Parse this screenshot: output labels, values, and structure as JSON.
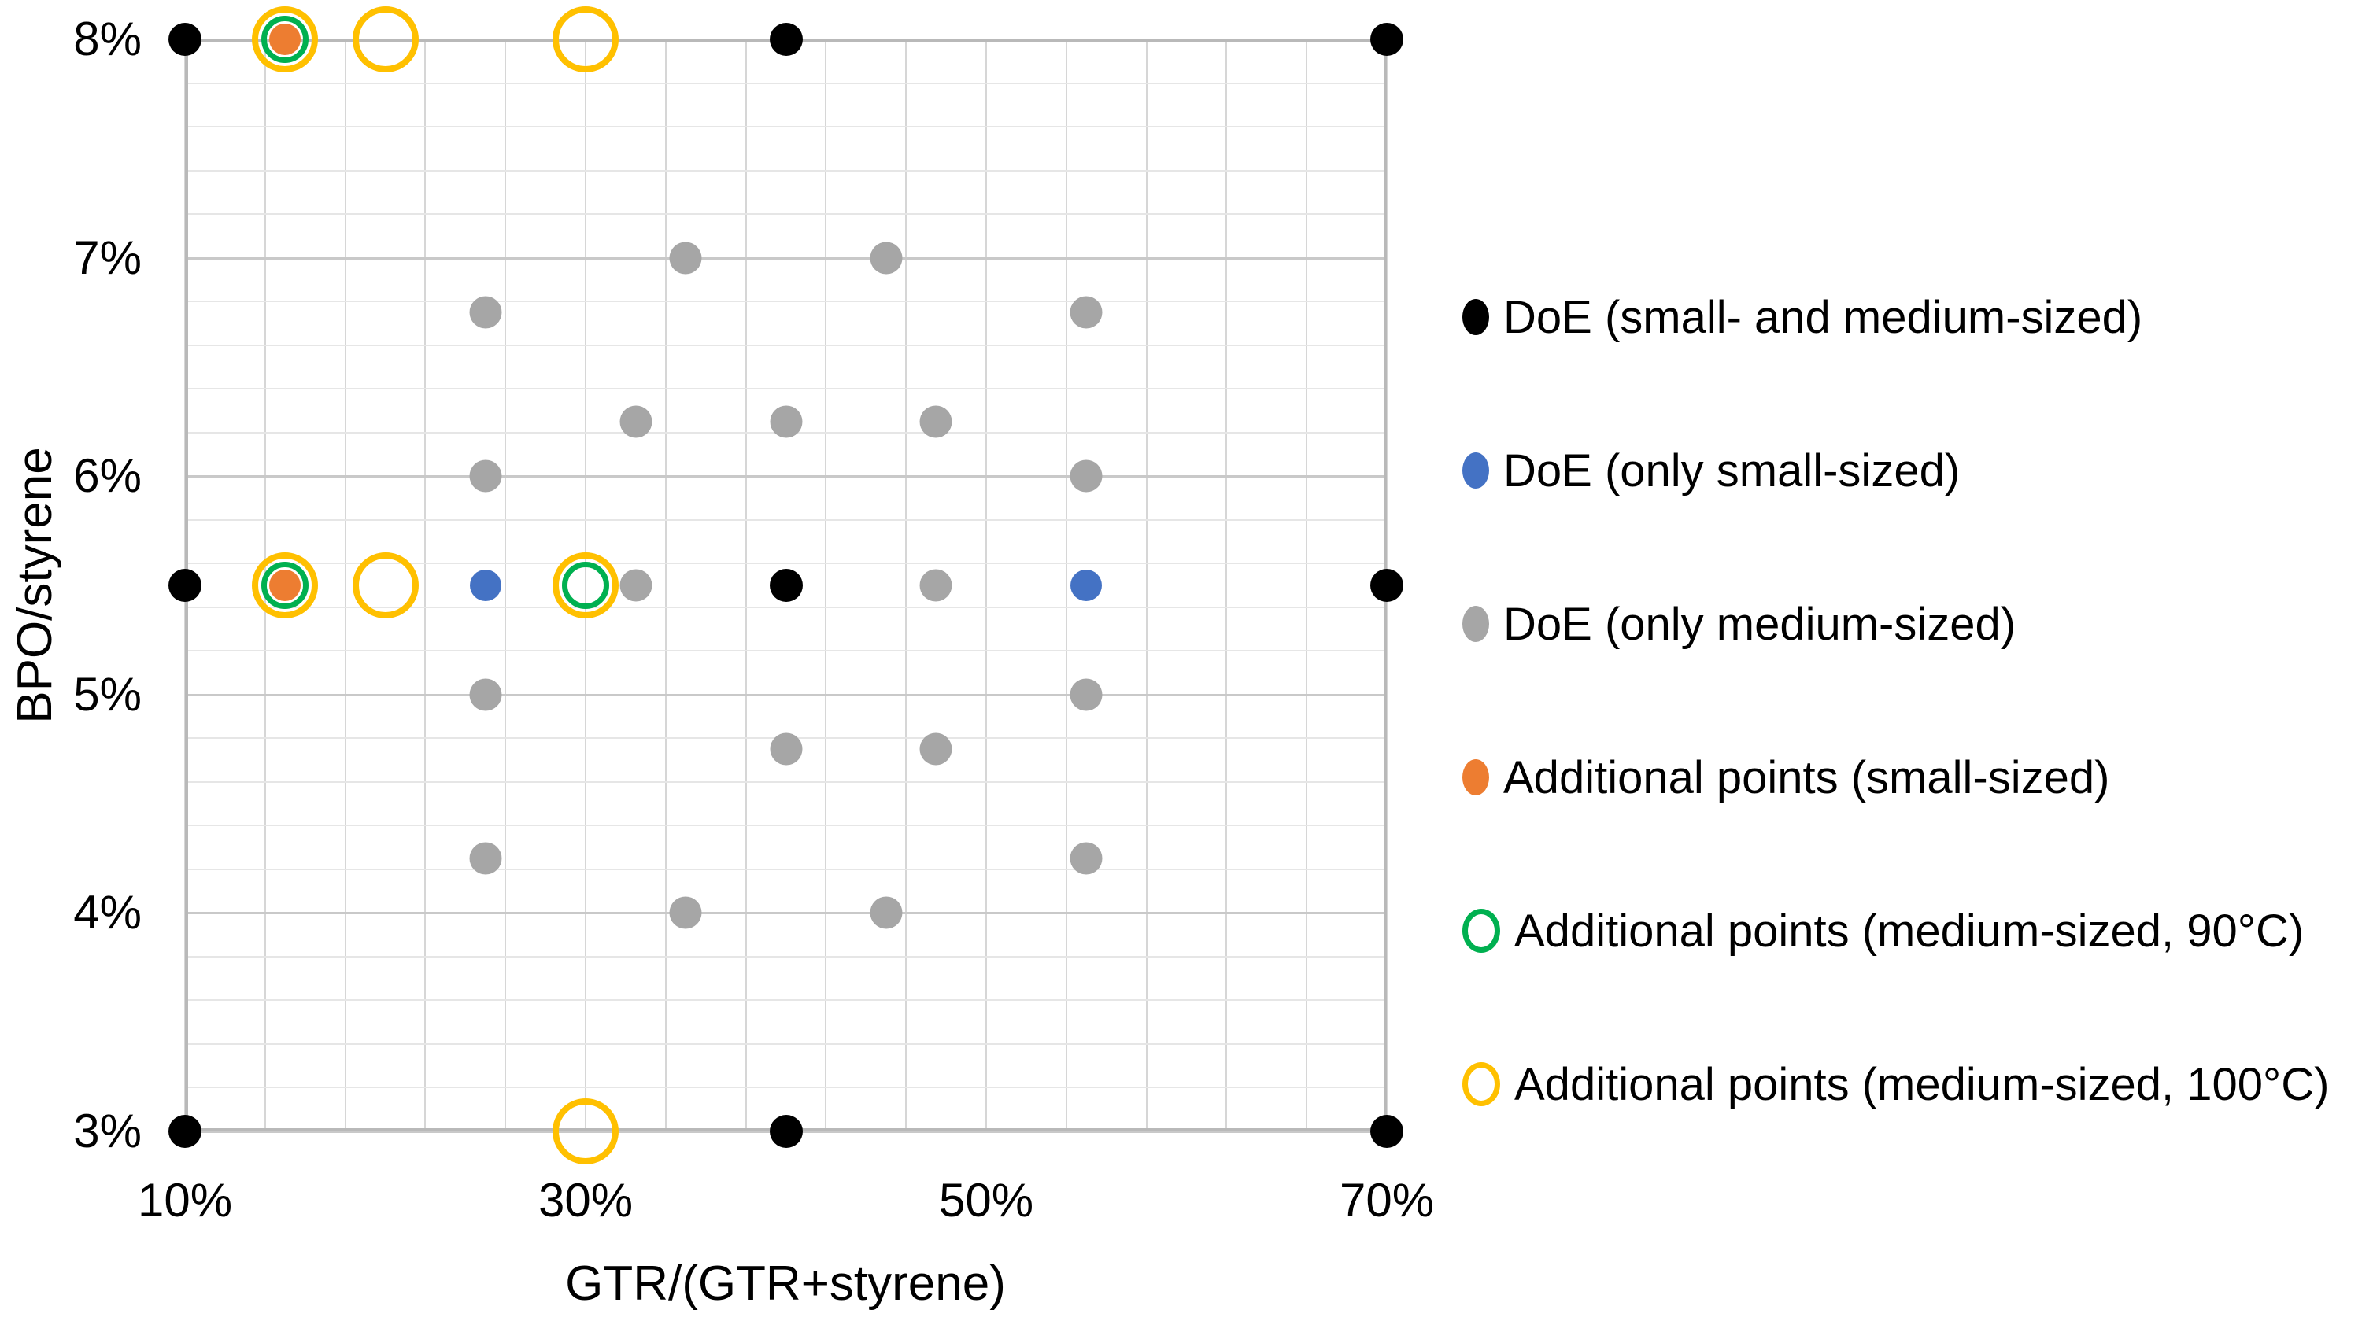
{
  "chart_data": {
    "type": "scatter",
    "title": "",
    "xlabel": "GTR/(GTR+styrene)",
    "ylabel": "BPO/styrene",
    "xlim": [
      10,
      70
    ],
    "ylim": [
      3,
      8
    ],
    "x_tick_values": [
      10,
      30,
      50,
      70
    ],
    "x_tick_labels": [
      "10%",
      "30%",
      "50%",
      "70%"
    ],
    "y_tick_values": [
      3,
      4,
      5,
      6,
      7,
      8
    ],
    "y_tick_labels": [
      "3%",
      "4%",
      "5%",
      "6%",
      "7%",
      "8%"
    ],
    "x_minor_step": 4,
    "y_minor_step": 0.2,
    "y_major_step": 1,
    "grid": "on",
    "legend_position": "right",
    "series": [
      {
        "name": "DoE (small- and medium-sized)",
        "marker": "filled",
        "color": "#000000",
        "points": [
          [
            10,
            8
          ],
          [
            40,
            8
          ],
          [
            70,
            8
          ],
          [
            10,
            5.5
          ],
          [
            40,
            5.5
          ],
          [
            70,
            5.5
          ],
          [
            10,
            3
          ],
          [
            40,
            3
          ],
          [
            70,
            3
          ]
        ]
      },
      {
        "name": "DoE (only small-sized)",
        "marker": "filled",
        "color": "#4472c4",
        "points": [
          [
            25,
            5.5
          ],
          [
            55,
            5.5
          ]
        ]
      },
      {
        "name": "DoE (only medium-sized)",
        "marker": "filled",
        "color": "#a6a6a6",
        "points": [
          [
            35,
            7
          ],
          [
            45,
            7
          ],
          [
            25,
            6.75
          ],
          [
            55,
            6.75
          ],
          [
            32.5,
            6.25
          ],
          [
            40,
            6.25
          ],
          [
            47.5,
            6.25
          ],
          [
            25,
            6
          ],
          [
            55,
            6
          ],
          [
            32.5,
            5.5
          ],
          [
            47.5,
            5.5
          ],
          [
            25,
            5
          ],
          [
            55,
            5
          ],
          [
            40,
            4.75
          ],
          [
            47.5,
            4.75
          ],
          [
            25,
            4.25
          ],
          [
            55,
            4.25
          ],
          [
            35,
            4
          ],
          [
            45,
            4
          ]
        ]
      },
      {
        "name": "Additional points (small-sized)",
        "marker": "filled",
        "color": "#ed7d31",
        "points": [
          [
            15,
            8
          ],
          [
            15,
            5.5
          ]
        ]
      },
      {
        "name": "Additional points (medium-sized, 90°C)",
        "marker": "open",
        "color": "#00b050",
        "points": [
          [
            15,
            8
          ],
          [
            15,
            5.5
          ],
          [
            30,
            5.5
          ]
        ]
      },
      {
        "name": "Additional points (medium-sized, 100°C)",
        "marker": "open",
        "color": "#ffc000",
        "points": [
          [
            15,
            8
          ],
          [
            20,
            8
          ],
          [
            30,
            8
          ],
          [
            15,
            5.5
          ],
          [
            20,
            5.5
          ],
          [
            30,
            5.5
          ],
          [
            30,
            3
          ]
        ]
      }
    ]
  }
}
